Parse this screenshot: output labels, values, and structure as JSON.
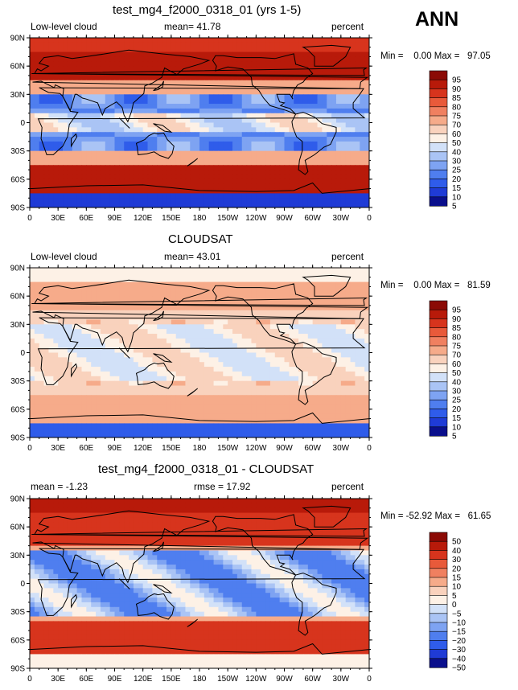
{
  "season": "ANN",
  "colors": {
    "scale": [
      "#0a0f8c",
      "#1f3bd6",
      "#2f5cea",
      "#4f7eef",
      "#7ea3f2",
      "#aac4f5",
      "#d2e1f8",
      "#fdf1e6",
      "#f9d2bd",
      "#f6ab8a",
      "#f08060",
      "#e85a3a",
      "#d7341d",
      "#b81a0a",
      "#8b0a05"
    ],
    "land_outline": "#000000"
  },
  "panels": [
    {
      "title": "test_mg4_f2000_0318_01 (yrs 1-5)",
      "left_label": "Low-level cloud",
      "mid_label": "mean=  41.78",
      "right_label": "percent",
      "min_max": "Min =    0.00 Max =   97.05",
      "colorbar_labels": [
        "95",
        "90",
        "85",
        "80",
        "75",
        "70",
        "60",
        "50",
        "40",
        "30",
        "25",
        "20",
        "15",
        "10",
        "5"
      ]
    },
    {
      "title": "CLOUDSAT",
      "left_label": "Low-level cloud",
      "mid_label": "mean=  43.01",
      "right_label": "percent",
      "min_max": "Min =    0.00 Max =   81.59",
      "colorbar_labels": [
        "95",
        "90",
        "85",
        "80",
        "75",
        "70",
        "60",
        "50",
        "40",
        "30",
        "25",
        "20",
        "15",
        "10",
        "5"
      ]
    },
    {
      "title": "test_mg4_f2000_0318_01 - CLOUDSAT",
      "left_label": "mean =  -1.23",
      "mid_label": "rmse =  17.92",
      "right_label": "percent",
      "min_max": "Min = -52.92 Max =   61.65",
      "colorbar_labels": [
        "50",
        "40",
        "30",
        "20",
        "15",
        "10",
        "5",
        "0",
        "−5",
        "−10",
        "−15",
        "−20",
        "−30",
        "−40",
        "−50"
      ]
    }
  ],
  "axes": {
    "lat_ticks": [
      "90N",
      "60N",
      "30N",
      "0",
      "30S",
      "60S",
      "90S"
    ],
    "lon_ticks": [
      "0",
      "30E",
      "60E",
      "90E",
      "120E",
      "150E",
      "180",
      "150W",
      "120W",
      "90W",
      "60W",
      "30W",
      "0"
    ]
  }
}
